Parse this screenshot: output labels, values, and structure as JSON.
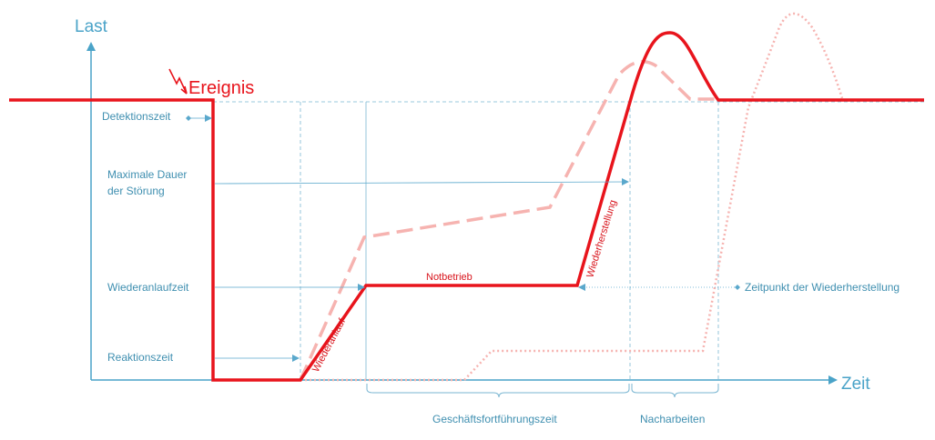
{
  "axes": {
    "y_label": "Last",
    "x_label": "Zeit"
  },
  "event_label": "Ereignis",
  "left_labels": {
    "detection": "Detektionszeit",
    "max_duration_line1": "Maximale Dauer",
    "max_duration_line2": "der Störung",
    "restart_time": "Wiederanlaufzeit",
    "reaction_time": "Reaktionszeit"
  },
  "curve_labels": {
    "emergency": "Notbetrieb",
    "restart": "Wiederanlauf",
    "restoration": "Wiederherstellung"
  },
  "right_label": "Zeitpunkt der Wiederherstellung",
  "bottom_labels": {
    "continuity": "Geschäftsfortführungszeit",
    "postwork": "Nacharbeiten"
  },
  "colors": {
    "axis": "#4aa3c8",
    "main_curve": "#e8141c",
    "faded_curve": "#f6b3b0",
    "guide": "#5aa8cc"
  }
}
